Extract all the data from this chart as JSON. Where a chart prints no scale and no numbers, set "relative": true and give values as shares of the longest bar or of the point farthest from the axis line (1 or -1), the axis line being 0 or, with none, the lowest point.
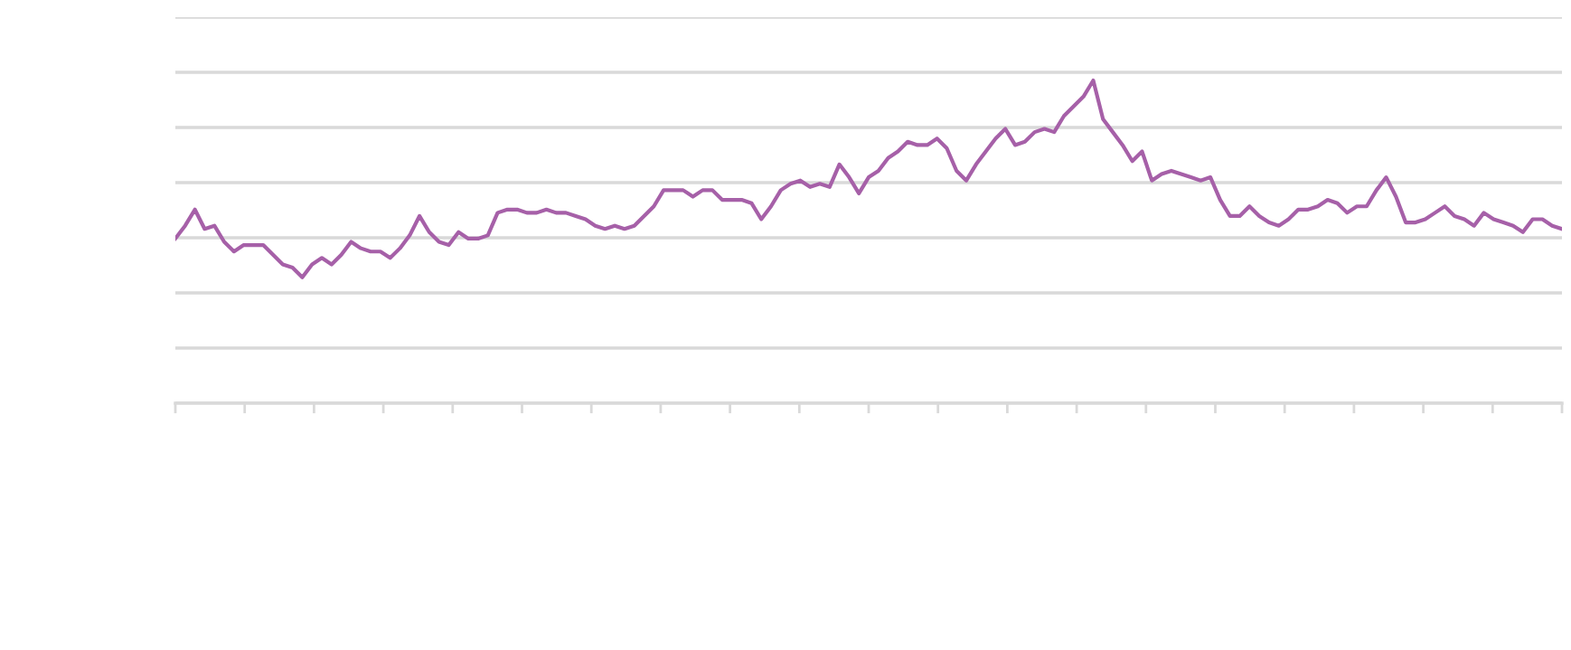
{
  "chart_data": {
    "type": "line",
    "relative": true,
    "grid": "y",
    "tick_labels": false,
    "categories": [
      null,
      null,
      null,
      null,
      null,
      null,
      null,
      null,
      null,
      null,
      null,
      null,
      null,
      null,
      null,
      null,
      null,
      null,
      null,
      null,
      null,
      null,
      null,
      null,
      null,
      null,
      null,
      null,
      null,
      null,
      null,
      null,
      null,
      null,
      null,
      null,
      null,
      null,
      null,
      null,
      null,
      null,
      null,
      null,
      null,
      null,
      null,
      null,
      null,
      null,
      null,
      null,
      null,
      null,
      null,
      null,
      null,
      null,
      null,
      null,
      null,
      null,
      null,
      null,
      null,
      null,
      null,
      null,
      null,
      null,
      null,
      null,
      null,
      null,
      null,
      null,
      null,
      null,
      null,
      null,
      null,
      null,
      null,
      null,
      null,
      null,
      null,
      null,
      null,
      null,
      null,
      null,
      null,
      null,
      null,
      null,
      null,
      null,
      null,
      null,
      null,
      null,
      null,
      null,
      null,
      null,
      null,
      null,
      null,
      null,
      null,
      null,
      null,
      null,
      null,
      null,
      null,
      null,
      null,
      null,
      null,
      null,
      null,
      null,
      null,
      null,
      null,
      null,
      null,
      null,
      null,
      null,
      null,
      null,
      null,
      null,
      null,
      null,
      null,
      null,
      null,
      null,
      null
    ],
    "series": [
      {
        "color": "#a660a8",
        "values": [
          0.51,
          0.55,
          0.6,
          0.54,
          0.55,
          0.5,
          0.47,
          0.49,
          0.49,
          0.49,
          0.46,
          0.43,
          0.42,
          0.39,
          0.43,
          0.45,
          0.43,
          0.46,
          0.5,
          0.48,
          0.47,
          0.47,
          0.45,
          0.48,
          0.52,
          0.58,
          0.53,
          0.5,
          0.49,
          0.53,
          0.51,
          0.51,
          0.52,
          0.59,
          0.6,
          0.6,
          0.59,
          0.59,
          0.6,
          0.59,
          0.59,
          0.58,
          0.57,
          0.55,
          0.54,
          0.55,
          0.54,
          0.55,
          0.58,
          0.61,
          0.66,
          0.66,
          0.66,
          0.64,
          0.66,
          0.66,
          0.63,
          0.63,
          0.63,
          0.62,
          0.57,
          0.61,
          0.66,
          0.68,
          0.69,
          0.67,
          0.68,
          0.67,
          0.74,
          0.7,
          0.65,
          0.7,
          0.72,
          0.76,
          0.78,
          0.81,
          0.8,
          0.8,
          0.82,
          0.79,
          0.72,
          0.69,
          0.74,
          0.78,
          0.82,
          0.85,
          0.8,
          0.81,
          0.84,
          0.85,
          0.84,
          0.89,
          0.92,
          0.95,
          1.0,
          0.88,
          0.84,
          0.8,
          0.75,
          0.78,
          0.69,
          0.71,
          0.72,
          0.71,
          0.7,
          0.69,
          0.7,
          0.63,
          0.58,
          0.58,
          0.61,
          0.58,
          0.56,
          0.55,
          0.57,
          0.6,
          0.6,
          0.61,
          0.63,
          0.62,
          0.59,
          0.61,
          0.61,
          0.66,
          0.7,
          0.64,
          0.56,
          0.56,
          0.57,
          0.59,
          0.61,
          0.58,
          0.57,
          0.55,
          0.59,
          0.57,
          0.56,
          0.55,
          0.53,
          0.57,
          0.57,
          0.55,
          0.54
        ]
      }
    ]
  }
}
